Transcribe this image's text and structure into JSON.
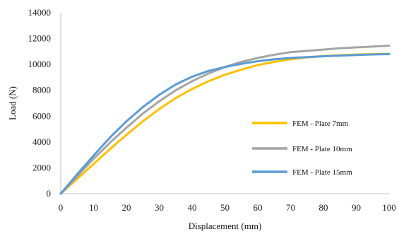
{
  "chart_data": {
    "type": "line",
    "title": "",
    "xlabel": "Displacement (mm)",
    "ylabel": "Load (N)",
    "xlim": [
      0,
      100
    ],
    "ylim": [
      0,
      14000
    ],
    "xticks": [
      0,
      10,
      20,
      30,
      40,
      50,
      60,
      70,
      80,
      90,
      100
    ],
    "yticks": [
      0,
      2000,
      4000,
      6000,
      8000,
      10000,
      12000,
      14000
    ],
    "grid": false,
    "legend_position": "right",
    "series": [
      {
        "name": "FEM - Plate 7mm",
        "color": "#FFC000",
        "x": [
          0,
          5,
          10,
          15,
          20,
          25,
          30,
          35,
          40,
          45,
          50,
          55,
          60,
          65,
          70,
          75,
          80,
          85,
          90,
          95,
          100
        ],
        "y": [
          0,
          1150,
          2300,
          3450,
          4550,
          5600,
          6550,
          7400,
          8100,
          8700,
          9200,
          9600,
          9950,
          10200,
          10400,
          10550,
          10650,
          10720,
          10770,
          10800,
          10820
        ]
      },
      {
        "name": "FEM - Plate 10mm",
        "color": "#A5A5A5",
        "x": [
          0,
          5,
          10,
          15,
          20,
          25,
          30,
          35,
          40,
          45,
          50,
          55,
          60,
          65,
          70,
          75,
          80,
          85,
          90,
          95,
          100
        ],
        "y": [
          0,
          1350,
          2700,
          3950,
          5100,
          6200,
          7150,
          8000,
          8700,
          9300,
          9800,
          10200,
          10500,
          10750,
          10950,
          11050,
          11150,
          11250,
          11320,
          11380,
          11450
        ]
      },
      {
        "name": "FEM - Plate 15mm",
        "color": "#5B9BD5",
        "x": [
          0,
          5,
          10,
          15,
          20,
          25,
          30,
          35,
          40,
          45,
          50,
          55,
          60,
          65,
          70,
          75,
          80,
          85,
          90,
          95,
          100
        ],
        "y": [
          0,
          1500,
          2950,
          4350,
          5600,
          6700,
          7650,
          8450,
          9050,
          9500,
          9800,
          10050,
          10250,
          10400,
          10500,
          10570,
          10630,
          10680,
          10730,
          10770,
          10800
        ]
      }
    ]
  }
}
